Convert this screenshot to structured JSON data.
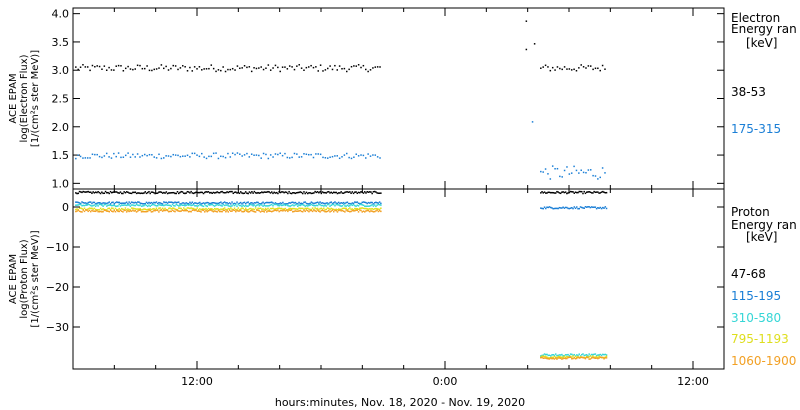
{
  "xlabel": "hours:minutes, Nov. 18, 2020 - Nov. 19, 2020",
  "colors": {
    "axis": "#000000",
    "black": "#000000",
    "blue": "#1b7fd6",
    "cyan": "#35d6d6",
    "yellow": "#dede1e",
    "orange": "#f2a024"
  },
  "chart_data": [
    {
      "type": "scatter",
      "name": "electron",
      "ylabel_lines": [
        "ACE EPAM",
        "log(Electron Flux)",
        "[1/(cm²s ster MeV)]"
      ],
      "ylim": [
        0.9,
        4.1
      ],
      "yticks": [
        1.0,
        1.5,
        2.0,
        2.5,
        3.0,
        3.5,
        4.0
      ],
      "ytick_labels": [
        "1.0",
        "1.5",
        "2.0",
        "2.5",
        "3.0",
        "3.5",
        "4.0"
      ],
      "x_unit": "hours since Nov. 18 06:00",
      "xlim": [
        0,
        31.5
      ],
      "xticks": [
        6,
        18,
        30
      ],
      "xtick_labels": [
        "12:00",
        "0:00",
        "12:00"
      ],
      "legend_title": [
        "Electron",
        "Energy ran",
        "[keV]"
      ],
      "series": [
        {
          "name": "38-53",
          "color": "black",
          "segments": [
            {
              "x_start": 0.1,
              "x_end": 14.9,
              "y": 3.05,
              "jitter": 0.06
            },
            {
              "x_start": 22.6,
              "x_end": 25.8,
              "y": 3.05,
              "jitter": 0.06
            }
          ],
          "points": [
            [
              21.9,
              3.88
            ],
            [
              22.3,
              3.48
            ],
            [
              21.9,
              3.38
            ]
          ]
        },
        {
          "name": "175-315",
          "color": "blue",
          "segments": [
            {
              "x_start": 0.1,
              "x_end": 14.9,
              "y": 1.5,
              "jitter": 0.05
            },
            {
              "x_start": 22.6,
              "x_end": 25.8,
              "y": 1.2,
              "jitter": 0.12
            }
          ],
          "points": [
            [
              22.2,
              2.1
            ]
          ]
        }
      ]
    },
    {
      "type": "scatter",
      "name": "proton",
      "ylabel_lines": [
        "ACE EPAM",
        "log(Proton Flux)",
        "[1/(cm²s ster MeV)]"
      ],
      "ylim": [
        -40.5,
        4.5
      ],
      "yticks": [
        0,
        -10,
        -20,
        -30
      ],
      "ytick_labels": [
        "0",
        "−10",
        "−20",
        "−30"
      ],
      "x_unit": "hours since Nov. 18 06:00",
      "xlim": [
        0,
        31.5
      ],
      "xticks": [
        6,
        18,
        30
      ],
      "xtick_labels": [
        "12:00",
        "0:00",
        "12:00"
      ],
      "legend_title": [
        "Proton",
        "Energy ran",
        "[keV]"
      ],
      "series": [
        {
          "name": "47-68",
          "color": "black",
          "segments": [
            {
              "x_start": 0.1,
              "x_end": 14.9,
              "y": 3.8
            },
            {
              "x_start": 22.6,
              "x_end": 25.8,
              "y": 3.8
            }
          ]
        },
        {
          "name": "115-195",
          "color": "blue",
          "segments": [
            {
              "x_start": 0.1,
              "x_end": 14.9,
              "y": 1.2
            },
            {
              "x_start": 22.6,
              "x_end": 25.8,
              "y": 0.0
            }
          ]
        },
        {
          "name": "310-580",
          "color": "cyan",
          "segments": [
            {
              "x_start": 0.1,
              "x_end": 14.9,
              "y": 0.6
            },
            {
              "x_start": 22.6,
              "x_end": 25.8,
              "y": -36.8
            }
          ]
        },
        {
          "name": "795-1193",
          "color": "yellow",
          "segments": [
            {
              "x_start": 0.1,
              "x_end": 14.9,
              "y": -0.3
            },
            {
              "x_start": 22.6,
              "x_end": 25.8,
              "y": -37.3
            }
          ]
        },
        {
          "name": "1060-1900",
          "color": "orange",
          "segments": [
            {
              "x_start": 0.1,
              "x_end": 14.9,
              "y": -0.8
            },
            {
              "x_start": 22.6,
              "x_end": 25.8,
              "y": -37.6
            }
          ]
        }
      ]
    }
  ]
}
